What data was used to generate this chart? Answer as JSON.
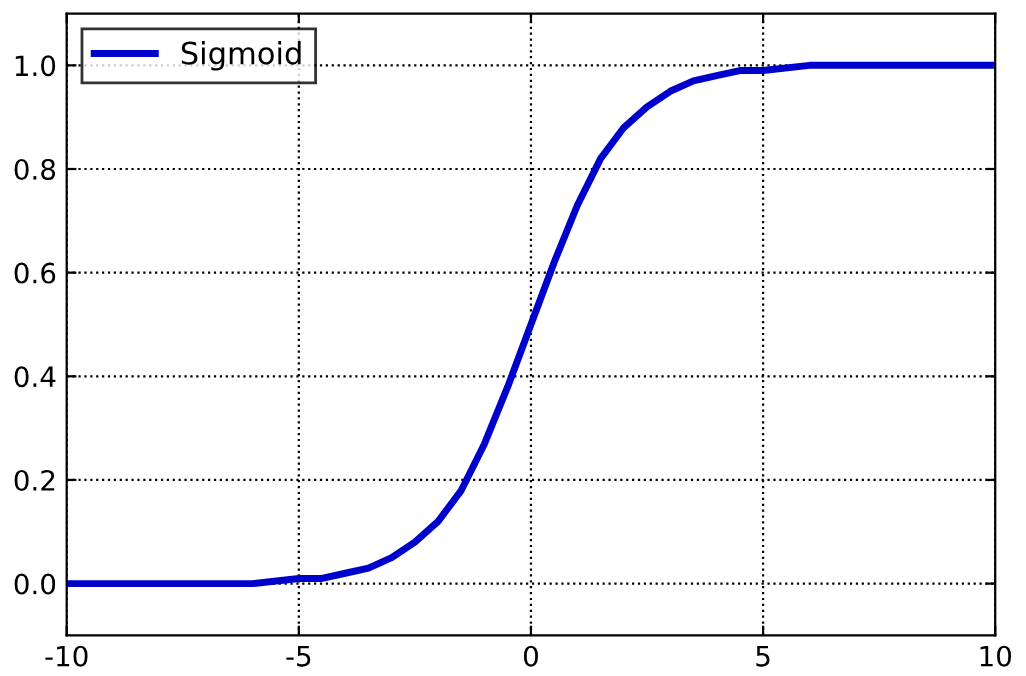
{
  "chart_data": {
    "type": "line",
    "x": [
      -10,
      -9,
      -8,
      -7,
      -6,
      -5,
      -4.5,
      -4,
      -3.5,
      -3,
      -2.5,
      -2,
      -1.5,
      -1,
      -0.5,
      0,
      0.5,
      1,
      1.5,
      2,
      2.5,
      3,
      3.5,
      4,
      4.5,
      5,
      6,
      7,
      8,
      9,
      10
    ],
    "series": [
      {
        "name": "Sigmoid",
        "color": "#0000cc",
        "values": [
          0.0,
          0.0,
          0.0,
          0.0,
          0.0,
          0.01,
          0.01,
          0.02,
          0.03,
          0.05,
          0.08,
          0.12,
          0.18,
          0.27,
          0.38,
          0.5,
          0.62,
          0.73,
          0.82,
          0.88,
          0.92,
          0.95,
          0.97,
          0.98,
          0.99,
          0.99,
          1.0,
          1.0,
          1.0,
          1.0,
          1.0
        ]
      }
    ],
    "xlim": [
      -10,
      10
    ],
    "ylim": [
      -0.1,
      1.1
    ],
    "xticks": [
      -10,
      -5,
      0,
      5,
      10
    ],
    "yticks": [
      {
        "value": 0.0,
        "label": "0.0"
      },
      {
        "value": 0.2,
        "label": "0.2"
      },
      {
        "value": 0.4,
        "label": "0.4"
      },
      {
        "value": 0.6,
        "label": "0.6"
      },
      {
        "value": 0.8,
        "label": "0.8"
      },
      {
        "value": 1.0,
        "label": "1.0"
      }
    ],
    "grid": true,
    "legend": "top left",
    "line_style": "solid",
    "marker": "none"
  }
}
